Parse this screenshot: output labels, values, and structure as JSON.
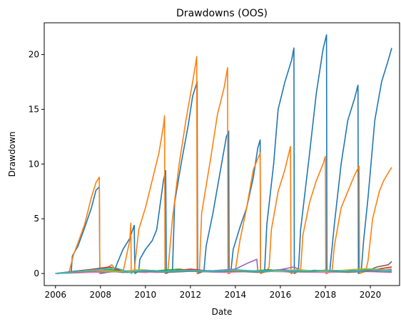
{
  "chart_data": {
    "type": "line",
    "title": "Drawdowns (OOS)",
    "xlabel": "Date",
    "ylabel": "Drawdown",
    "xlim": [
      2005.5,
      2021.3
    ],
    "ylim": [
      -1.1,
      22.9
    ],
    "xticks": [
      2006,
      2008,
      2010,
      2012,
      2014,
      2016,
      2018,
      2020
    ],
    "xtick_labels": [
      "2006",
      "2008",
      "2010",
      "2012",
      "2014",
      "2016",
      "2018",
      "2020"
    ],
    "yticks": [
      0,
      5,
      10,
      15,
      20
    ],
    "ytick_labels": [
      "0",
      "5",
      "10",
      "15",
      "20"
    ],
    "grid": false,
    "legend": "none",
    "series": [
      {
        "color": "#1f77b4",
        "points": [
          [
            2006.0,
            0
          ],
          [
            2006.7,
            0.1
          ],
          [
            2006.75,
            1.6
          ],
          [
            2007.0,
            2.5
          ],
          [
            2007.3,
            4.2
          ],
          [
            2007.6,
            6.0
          ],
          [
            2007.8,
            7.6
          ],
          [
            2007.95,
            7.9
          ],
          [
            2007.97,
            0
          ],
          [
            2008.6,
            0.2
          ],
          [
            2009.0,
            2.2
          ],
          [
            2009.3,
            3.2
          ],
          [
            2009.5,
            4.4
          ],
          [
            2009.53,
            0
          ],
          [
            2009.7,
            0.2
          ],
          [
            2009.75,
            1.3
          ],
          [
            2010.0,
            2.2
          ],
          [
            2010.3,
            3.0
          ],
          [
            2010.5,
            4.0
          ],
          [
            2010.8,
            8.5
          ],
          [
            2010.9,
            9.4
          ],
          [
            2010.93,
            0
          ],
          [
            2011.2,
            0.3
          ],
          [
            2011.3,
            6.5
          ],
          [
            2011.6,
            10.2
          ],
          [
            2011.9,
            13.5
          ],
          [
            2012.1,
            16.2
          ],
          [
            2012.3,
            17.5
          ],
          [
            2012.32,
            0
          ],
          [
            2012.6,
            0.2
          ],
          [
            2012.7,
            2.5
          ],
          [
            2013.0,
            5.5
          ],
          [
            2013.3,
            9.0
          ],
          [
            2013.6,
            12.5
          ],
          [
            2013.7,
            13.0
          ],
          [
            2013.72,
            0
          ],
          [
            2013.8,
            0.2
          ],
          [
            2013.9,
            2.2
          ],
          [
            2014.2,
            4.2
          ],
          [
            2014.5,
            6.0
          ],
          [
            2014.8,
            8.8
          ],
          [
            2015.0,
            11.5
          ],
          [
            2015.1,
            12.2
          ],
          [
            2015.12,
            0
          ],
          [
            2015.3,
            0.3
          ],
          [
            2015.4,
            4.5
          ],
          [
            2015.7,
            10.0
          ],
          [
            2015.9,
            15.0
          ],
          [
            2016.2,
            17.5
          ],
          [
            2016.5,
            19.5
          ],
          [
            2016.6,
            20.6
          ],
          [
            2016.62,
            0
          ],
          [
            2016.8,
            0.2
          ],
          [
            2016.9,
            4.0
          ],
          [
            2017.3,
            11.0
          ],
          [
            2017.6,
            16.5
          ],
          [
            2017.9,
            20.5
          ],
          [
            2018.05,
            21.8
          ],
          [
            2018.07,
            0
          ],
          [
            2018.2,
            0.3
          ],
          [
            2018.4,
            4.5
          ],
          [
            2018.7,
            10.0
          ],
          [
            2019.0,
            14.0
          ],
          [
            2019.3,
            16.0
          ],
          [
            2019.45,
            17.2
          ],
          [
            2019.47,
            0
          ],
          [
            2019.6,
            0.3
          ],
          [
            2019.7,
            3.0
          ],
          [
            2019.9,
            7.0
          ],
          [
            2020.2,
            14.0
          ],
          [
            2020.5,
            17.5
          ],
          [
            2020.8,
            19.5
          ],
          [
            2020.95,
            20.6
          ]
        ]
      },
      {
        "color": "#ff7f0e",
        "points": [
          [
            2006.0,
            0
          ],
          [
            2006.6,
            0.1
          ],
          [
            2006.8,
            1.7
          ],
          [
            2007.0,
            2.8
          ],
          [
            2007.3,
            4.5
          ],
          [
            2007.6,
            7.0
          ],
          [
            2007.8,
            8.3
          ],
          [
            2007.95,
            8.8
          ],
          [
            2007.97,
            0
          ],
          [
            2008.2,
            0.4
          ],
          [
            2008.5,
            0.8
          ],
          [
            2008.7,
            0.2
          ],
          [
            2009.0,
            0.1
          ],
          [
            2009.3,
            3.0
          ],
          [
            2009.35,
            4.6
          ],
          [
            2009.37,
            0
          ],
          [
            2009.5,
            0.2
          ],
          [
            2009.7,
            4.0
          ],
          [
            2010.0,
            6.0
          ],
          [
            2010.3,
            8.5
          ],
          [
            2010.6,
            11.0
          ],
          [
            2010.8,
            13.5
          ],
          [
            2010.85,
            14.4
          ],
          [
            2010.87,
            0
          ],
          [
            2011.0,
            0.3
          ],
          [
            2011.2,
            5.0
          ],
          [
            2011.5,
            10.0
          ],
          [
            2011.8,
            14.0
          ],
          [
            2012.1,
            17.5
          ],
          [
            2012.28,
            19.8
          ],
          [
            2012.3,
            0
          ],
          [
            2012.4,
            0.2
          ],
          [
            2012.5,
            5.5
          ],
          [
            2012.9,
            10.5
          ],
          [
            2013.2,
            14.5
          ],
          [
            2013.5,
            17.0
          ],
          [
            2013.65,
            18.8
          ],
          [
            2013.67,
            0
          ],
          [
            2013.8,
            0.1
          ],
          [
            2014.0,
            0.3
          ],
          [
            2014.2,
            3.0
          ],
          [
            2014.5,
            6.0
          ],
          [
            2014.8,
            9.5
          ],
          [
            2015.1,
            11.0
          ],
          [
            2015.12,
            0
          ],
          [
            2015.4,
            0.2
          ],
          [
            2015.5,
            0.6
          ],
          [
            2015.6,
            4.0
          ],
          [
            2015.9,
            7.5
          ],
          [
            2016.2,
            9.5
          ],
          [
            2016.45,
            11.6
          ],
          [
            2016.47,
            0
          ],
          [
            2016.9,
            0.3
          ],
          [
            2017.0,
            3.5
          ],
          [
            2017.3,
            6.5
          ],
          [
            2017.6,
            8.5
          ],
          [
            2017.9,
            10.0
          ],
          [
            2018.0,
            10.7
          ],
          [
            2018.02,
            0
          ],
          [
            2018.3,
            0.2
          ],
          [
            2018.4,
            2.5
          ],
          [
            2018.7,
            6.0
          ],
          [
            2019.0,
            7.5
          ],
          [
            2019.3,
            9.0
          ],
          [
            2019.5,
            9.8
          ],
          [
            2019.52,
            0
          ],
          [
            2019.8,
            0.2
          ],
          [
            2019.9,
            1.2
          ],
          [
            2020.1,
            5.0
          ],
          [
            2020.4,
            7.5
          ],
          [
            2020.6,
            8.5
          ],
          [
            2020.8,
            9.2
          ],
          [
            2020.95,
            9.7
          ]
        ]
      },
      {
        "color": "#2ca02c",
        "points": [
          [
            2006.0,
            0
          ],
          [
            2007.0,
            0.15
          ],
          [
            2008.5,
            0.35
          ],
          [
            2009.2,
            0.1
          ],
          [
            2010.5,
            0.25
          ],
          [
            2011.5,
            0.4
          ],
          [
            2012.5,
            0.15
          ],
          [
            2013.5,
            0.3
          ],
          [
            2014.5,
            0.2
          ],
          [
            2015.5,
            0.35
          ],
          [
            2016.5,
            0.1
          ],
          [
            2017.5,
            0.3
          ],
          [
            2018.5,
            0.2
          ],
          [
            2019.5,
            0.4
          ],
          [
            2020.95,
            0.3
          ]
        ]
      },
      {
        "color": "#d62728",
        "points": [
          [
            2006.0,
            0
          ],
          [
            2006.8,
            0.2
          ],
          [
            2007.5,
            0.35
          ],
          [
            2008.4,
            0.6
          ],
          [
            2009.0,
            0.2
          ],
          [
            2010.0,
            0.3
          ],
          [
            2011.0,
            0.2
          ],
          [
            2012.0,
            0.4
          ],
          [
            2013.0,
            0.2
          ],
          [
            2014.0,
            0.3
          ],
          [
            2015.0,
            0.15
          ],
          [
            2016.0,
            0.35
          ],
          [
            2017.0,
            0.2
          ],
          [
            2018.0,
            0.3
          ],
          [
            2019.0,
            0.2
          ],
          [
            2020.0,
            0.3
          ],
          [
            2020.95,
            0.6
          ]
        ]
      },
      {
        "color": "#9467bd",
        "points": [
          [
            2006.0,
            0
          ],
          [
            2007.0,
            0.1
          ],
          [
            2008.0,
            0.2
          ],
          [
            2009.0,
            0.15
          ],
          [
            2010.0,
            0.3
          ],
          [
            2011.0,
            0.2
          ],
          [
            2012.0,
            0.3
          ],
          [
            2013.0,
            0.25
          ],
          [
            2014.0,
            0.4
          ],
          [
            2014.6,
            1.0
          ],
          [
            2014.95,
            1.3
          ],
          [
            2015.0,
            0.2
          ],
          [
            2016.0,
            0.35
          ],
          [
            2016.6,
            0.6
          ],
          [
            2017.0,
            0.2
          ],
          [
            2018.0,
            0.25
          ],
          [
            2019.0,
            0.3
          ],
          [
            2020.0,
            0.2
          ],
          [
            2020.95,
            0.4
          ]
        ]
      },
      {
        "color": "#8c564b",
        "points": [
          [
            2006.0,
            0
          ],
          [
            2007.0,
            0.2
          ],
          [
            2008.0,
            0.1
          ],
          [
            2009.0,
            0.2
          ],
          [
            2010.0,
            0.1
          ],
          [
            2011.0,
            0.2
          ],
          [
            2012.0,
            0.3
          ],
          [
            2013.0,
            0.2
          ],
          [
            2014.0,
            0.25
          ],
          [
            2015.0,
            0.2
          ],
          [
            2016.0,
            0.3
          ],
          [
            2017.0,
            0.25
          ],
          [
            2018.0,
            0.2
          ],
          [
            2019.0,
            0.3
          ],
          [
            2019.8,
            0.2
          ],
          [
            2020.3,
            0.6
          ],
          [
            2020.8,
            0.8
          ],
          [
            2020.95,
            1.1
          ]
        ]
      },
      {
        "color": "#e377c2",
        "points": [
          [
            2006.0,
            0
          ],
          [
            2007.5,
            0.1
          ],
          [
            2009.0,
            0.2
          ],
          [
            2010.5,
            0.1
          ],
          [
            2012.0,
            0.2
          ],
          [
            2013.5,
            0.1
          ],
          [
            2015.0,
            0.2
          ],
          [
            2016.5,
            0.15
          ],
          [
            2018.0,
            0.1
          ],
          [
            2019.5,
            0.2
          ],
          [
            2020.95,
            0.1
          ]
        ]
      },
      {
        "color": "#7f7f7f",
        "points": [
          [
            2006.0,
            0
          ],
          [
            2007.0,
            0.1
          ],
          [
            2008.0,
            0.3
          ],
          [
            2009.0,
            0.1
          ],
          [
            2010.0,
            0.2
          ],
          [
            2011.0,
            0.1
          ],
          [
            2012.0,
            0.2
          ],
          [
            2013.0,
            0.15
          ],
          [
            2014.0,
            0.2
          ],
          [
            2015.0,
            0.1
          ],
          [
            2016.0,
            0.25
          ],
          [
            2017.0,
            0.15
          ],
          [
            2018.0,
            0.2
          ],
          [
            2019.0,
            0.1
          ],
          [
            2020.0,
            0.2
          ],
          [
            2020.95,
            0.15
          ]
        ]
      },
      {
        "color": "#bcbd22",
        "points": [
          [
            2006.0,
            0
          ],
          [
            2006.8,
            0.15
          ],
          [
            2007.8,
            0.3
          ],
          [
            2008.8,
            0.2
          ],
          [
            2009.8,
            0.35
          ],
          [
            2010.8,
            0.2
          ],
          [
            2011.8,
            0.3
          ],
          [
            2012.8,
            0.2
          ],
          [
            2013.8,
            0.3
          ],
          [
            2014.8,
            0.25
          ],
          [
            2015.8,
            0.2
          ],
          [
            2016.8,
            0.35
          ],
          [
            2017.8,
            0.2
          ],
          [
            2018.8,
            0.3
          ],
          [
            2019.8,
            0.45
          ],
          [
            2020.95,
            0.3
          ]
        ]
      },
      {
        "color": "#17becf",
        "points": [
          [
            2006.0,
            0
          ],
          [
            2007.0,
            0.2
          ],
          [
            2008.0,
            0.4
          ],
          [
            2008.7,
            0.5
          ],
          [
            2009.3,
            0.1
          ],
          [
            2010.0,
            0.3
          ],
          [
            2011.0,
            0.2
          ],
          [
            2012.0,
            0.3
          ],
          [
            2013.0,
            0.2
          ],
          [
            2014.0,
            0.35
          ],
          [
            2015.0,
            0.2
          ],
          [
            2016.0,
            0.3
          ],
          [
            2017.0,
            0.2
          ],
          [
            2018.0,
            0.3
          ],
          [
            2019.0,
            0.2
          ],
          [
            2020.0,
            0.35
          ],
          [
            2020.95,
            0.25
          ]
        ]
      }
    ]
  }
}
